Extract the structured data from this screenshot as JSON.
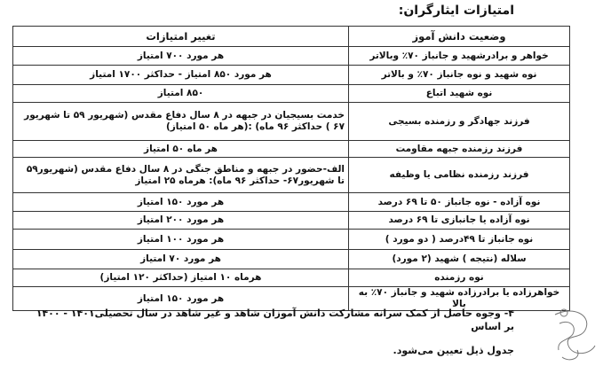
{
  "title": "امتیازات ایثارگران:",
  "table": {
    "headers": [
      "وضعیت دانش آموز",
      "تغییر امتیازات"
    ],
    "rows": [
      {
        "status": "خواهر و برادرشهید و جانباز ۷۰٪ وبالاتر",
        "points": "هر مورد ۷۰۰ امتیاز"
      },
      {
        "status": "نوه شهید و نوه جانباز ۷۰٪ و بالاتر",
        "points": "هر مورد ۸۵۰ امتیاز - حداکثر ۱۷۰۰ امتیاز"
      },
      {
        "status": "نوه شهید اتباع",
        "points": "۸۵۰ امتیاز"
      },
      {
        "status": "فرزند جهادگر و رزمنده بسیجی",
        "points": "خدمت بسیجیان در جبهه در ۸ سال دفاع مقدس (شهریور ۵۹ تا شهریور ۶۷ ) حداکثر ۹۶ ماه) :(هر ماه ۵۰ امتیاز)"
      },
      {
        "status": "فرزند رزمنده جبهه مقاومت",
        "points": "هر ماه ۵۰ امتیاز"
      },
      {
        "status": "فرزند رزمنده نظامی یا وظیفه",
        "points": "الف-حضور در جبهه و مناطق جنگی در ۸ سال دفاع مقدس (شهریور۵۹ تا شهریور۶۷- حداکثر ۹۶ ماه): هرماه ۲۵ امتیاز"
      },
      {
        "status": "نوه آزاده - نوه جانباز ۵۰ تا ۶۹ درصد",
        "points": "هر مورد ۱۵۰ امتیاز"
      },
      {
        "status": "نوه آزاده یا جانبازی تا ۶۹ درصد",
        "points": "هر مورد ۲۰۰ امتیاز"
      },
      {
        "status": "نوه جانباز تا ۴۹درصد ( دو مورد )",
        "points": "هر مورد ۱۰۰ امتیاز"
      },
      {
        "status": "سلاله (نتیجه ) شهید (۲ مورد)",
        "points": "هر مورد ۷۰ امتیاز"
      },
      {
        "status": "نوه رزمنده",
        "points": "هرماه ۱۰ امتیاز (حداکثر ۱۲۰ امتیاز)"
      },
      {
        "status": "خواهرزاده یا برادرزاده شهید و جانباز ۷۰٪ به بالا",
        "points": "هر مورد ۱۵۰ امتیاز"
      }
    ]
  },
  "note": {
    "line1": "۴- وجوه حاصل از کمک سرانه مشارکت دانش آموزان شاهد و غیر شاهد در سال تحصیلی۱۴۰۱ - ۱۴۰۰ بر اساس",
    "line2": "جدول ذیل تعیین می‌شود."
  },
  "watermark": "آموزش"
}
